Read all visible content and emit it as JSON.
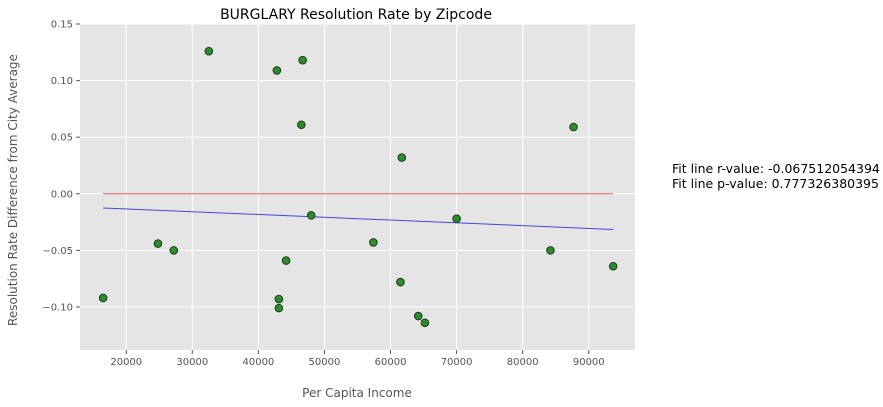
{
  "chart_data": {
    "type": "scatter",
    "title": "BURGLARY Resolution Rate by Zipcode",
    "xlabel": "Per Capita Income",
    "ylabel": "Resolution Rate Difference from City Average",
    "xlim": [
      13000,
      97000
    ],
    "ylim": [
      -0.138,
      0.15
    ],
    "xticks": [
      20000,
      30000,
      40000,
      50000,
      60000,
      70000,
      80000,
      90000
    ],
    "xtick_labels": [
      "20000",
      "30000",
      "40000",
      "50000",
      "60000",
      "70000",
      "80000",
      "90000"
    ],
    "yticks": [
      0.15,
      0.1,
      0.05,
      0.0,
      -0.05,
      -0.1
    ],
    "ytick_labels": [
      "0.15",
      "0.10",
      "0.05",
      "0.00",
      "−0.05",
      "−0.10"
    ],
    "grid": true,
    "background": "#e5e5e5",
    "grid_color": "#ffffff",
    "point_color": "#2e8b2e",
    "point_edge_color": "#1a3d1a",
    "fit_line_color": "#4444dd",
    "zero_line_color": "#e06060",
    "points": [
      {
        "x": 16500,
        "y": -0.092
      },
      {
        "x": 24800,
        "y": -0.044
      },
      {
        "x": 27200,
        "y": -0.05
      },
      {
        "x": 32500,
        "y": 0.126
      },
      {
        "x": 42800,
        "y": 0.109
      },
      {
        "x": 43100,
        "y": -0.093
      },
      {
        "x": 43100,
        "y": -0.101
      },
      {
        "x": 44200,
        "y": -0.059
      },
      {
        "x": 46500,
        "y": 0.061
      },
      {
        "x": 46700,
        "y": 0.118
      },
      {
        "x": 48000,
        "y": -0.019
      },
      {
        "x": 57400,
        "y": -0.043
      },
      {
        "x": 61500,
        "y": -0.078
      },
      {
        "x": 61700,
        "y": 0.032
      },
      {
        "x": 64200,
        "y": -0.108
      },
      {
        "x": 65200,
        "y": -0.114
      },
      {
        "x": 70000,
        "y": -0.022
      },
      {
        "x": 84200,
        "y": -0.05
      },
      {
        "x": 87700,
        "y": 0.059
      },
      {
        "x": 93700,
        "y": -0.064
      }
    ],
    "fit_line": {
      "x": [
        16500,
        93700
      ],
      "y": [
        -0.0125,
        -0.0315
      ]
    },
    "zero_line": {
      "x": [
        16500,
        93700
      ],
      "y": [
        0,
        0
      ]
    },
    "annotations": [
      "Fit line r-value: -0.067512054394",
      "Fit line p-value: 0.777326380395"
    ]
  }
}
